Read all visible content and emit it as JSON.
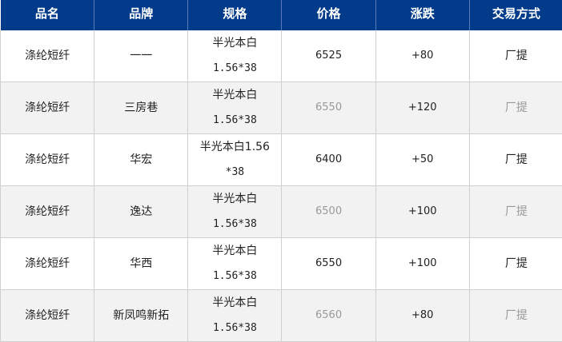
{
  "headers": [
    "品名",
    "品牌",
    "规格",
    "价格",
    "涨跌",
    "交易方式"
  ],
  "rows": [
    {
      "name": "涤纶短纤",
      "brand": "一一",
      "spec1": "半光本白",
      "spec2": "1.56*38",
      "price": "6525",
      "change": "+80",
      "mode": "厂提"
    },
    {
      "name": "涤纶短纤",
      "brand": "三房巷",
      "spec1": "半光本白",
      "spec2": "1.56*38",
      "price": "6550",
      "change": "+120",
      "mode": "厂提"
    },
    {
      "name": "涤纶短纤",
      "brand": "华宏",
      "spec1": "半光本白1.56",
      "spec2": "*38",
      "price": "6400",
      "change": "+50",
      "mode": "厂提"
    },
    {
      "name": "涤纶短纤",
      "brand": "逸达",
      "spec1": "半光本白",
      "spec2": "1.56*38",
      "price": "6500",
      "change": "+100",
      "mode": "厂提"
    },
    {
      "name": "涤纶短纤",
      "brand": "华西",
      "spec1": "半光本白",
      "spec2": "1.56*38",
      "price": "6550",
      "change": "+100",
      "mode": "厂提"
    },
    {
      "name": "涤纶短纤",
      "brand": "新凤鸣新拓",
      "spec1": "半光本白",
      "spec2": "1.56*38",
      "price": "6560",
      "change": "+80",
      "mode": "厂提"
    }
  ],
  "colors": {
    "header_bg": "#023b8a",
    "alt_row_bg": "#f2f2f2",
    "muted_text": "#999999"
  }
}
